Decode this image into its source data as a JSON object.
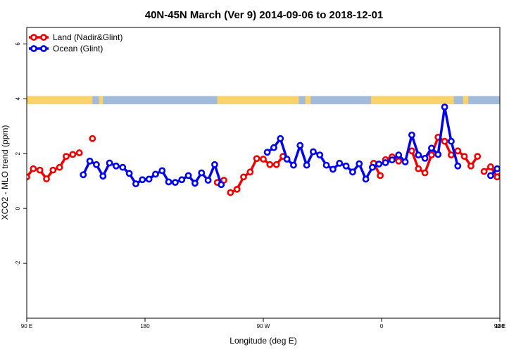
{
  "chart_data": {
    "type": "line",
    "title": "40N-45N March (Ver 9)   2014-09-06 to 2018-12-01",
    "xlabel": "Longitude (deg E)",
    "ylabel": "XCO2 - MLO trend (ppm)",
    "xlim": [
      90,
      450
    ],
    "ylim": [
      -4,
      6.6
    ],
    "x_ticks": [
      {
        "value": 90,
        "label": "90 E"
      },
      {
        "value": 180,
        "label": "180"
      },
      {
        "value": 270,
        "label": "90 W"
      },
      {
        "value": 360,
        "label": "0"
      },
      {
        "value": 450,
        "label": "90 E"
      },
      {
        "value": 540,
        "label": "180"
      }
    ],
    "y_ticks": [
      {
        "value": -2,
        "label": "-2"
      },
      {
        "value": 0,
        "label": "0"
      },
      {
        "value": 2,
        "label": "2"
      },
      {
        "value": 4,
        "label": "4"
      },
      {
        "value": 6,
        "label": "6"
      }
    ],
    "legend_position": "top-left",
    "land_band": {
      "y": [
        3.8,
        4.1
      ],
      "colors": {
        "land": "#fbd36b",
        "ocean": "#a3bbdb"
      },
      "land_segments": [
        [
          90,
          140
        ],
        [
          145,
          148
        ],
        [
          235,
          297
        ],
        [
          302,
          306
        ],
        [
          352,
          415
        ],
        [
          422,
          426
        ]
      ]
    },
    "series": [
      {
        "name": "Land (Nadir&Glint)",
        "color": "#ee0000",
        "points": [
          [
            [
              90,
              1.15
            ],
            [
              95,
              1.45
            ],
            [
              100,
              1.4
            ],
            [
              105,
              1.08
            ],
            [
              110,
              1.4
            ],
            [
              115,
              1.5
            ],
            [
              120,
              1.9
            ],
            [
              125,
              1.97
            ],
            [
              130,
              2.03
            ]
          ],
          [
            [
              140,
              2.55
            ]
          ],
          [
            [
              235,
              0.95
            ],
            [
              240,
              1.03
            ]
          ],
          [
            [
              245,
              0.58
            ],
            [
              250,
              0.7
            ],
            [
              255,
              1.15
            ],
            [
              260,
              1.33
            ],
            [
              265,
              1.82
            ],
            [
              270,
              1.8
            ],
            [
              275,
              1.6
            ],
            [
              280,
              1.6
            ],
            [
              285,
              1.9
            ]
          ],
          [
            [
              354,
              1.65
            ],
            [
              359,
              1.2
            ]
          ],
          [
            [
              363,
              1.78
            ],
            [
              368,
              1.88
            ],
            [
              373,
              1.73
            ]
          ],
          [
            [
              383,
              2.1
            ],
            [
              388,
              1.45
            ],
            [
              393,
              1.3
            ],
            [
              398,
              1.95
            ],
            [
              403,
              2.6
            ],
            [
              408,
              2.45
            ],
            [
              413,
              1.95
            ],
            [
              418,
              2.1
            ],
            [
              423,
              1.9
            ],
            [
              428,
              1.55
            ],
            [
              433,
              1.9
            ]
          ],
          [
            [
              438,
              1.35
            ],
            [
              443,
              1.52
            ],
            [
              448,
              1.15
            ],
            [
              453,
              1.45
            ],
            [
              458,
              1.38
            ],
            [
              463,
              1.07
            ],
            [
              468,
              1.4
            ],
            [
              473,
              1.5
            ],
            [
              478,
              1.92
            ],
            [
              483,
              1.97
            ],
            [
              488,
              2.04
            ]
          ],
          [
            [
              498,
              2.55
            ]
          ]
        ]
      },
      {
        "name": "Ocean (Glint)",
        "color": "#0000ee",
        "points": [
          [
            [
              133,
              1.23
            ],
            [
              138,
              1.73
            ],
            [
              143,
              1.6
            ],
            [
              148,
              1.18
            ],
            [
              153,
              1.66
            ],
            [
              158,
              1.55
            ],
            [
              163,
              1.5
            ],
            [
              168,
              1.28
            ],
            [
              173,
              0.9
            ],
            [
              178,
              1.05
            ],
            [
              183,
              1.07
            ],
            [
              188,
              1.25
            ],
            [
              193,
              1.38
            ],
            [
              198,
              0.97
            ],
            [
              203,
              0.95
            ],
            [
              208,
              1.05
            ],
            [
              213,
              1.2
            ],
            [
              218,
              0.92
            ],
            [
              223,
              1.3
            ],
            [
              228,
              1.03
            ],
            [
              233,
              1.6
            ],
            [
              238,
              0.87
            ]
          ],
          [
            [
              273,
              2.05
            ],
            [
              278,
              2.22
            ],
            [
              283,
              2.55
            ],
            [
              288,
              1.8
            ],
            [
              293,
              1.58
            ],
            [
              298,
              2.3
            ],
            [
              303,
              1.58
            ],
            [
              308,
              2.07
            ],
            [
              313,
              1.95
            ],
            [
              318,
              1.58
            ],
            [
              323,
              1.43
            ],
            [
              328,
              1.65
            ],
            [
              333,
              1.55
            ],
            [
              338,
              1.33
            ],
            [
              343,
              1.63
            ],
            [
              348,
              1.07
            ],
            [
              353,
              1.5
            ],
            [
              358,
              1.62
            ],
            [
              363,
              1.67
            ],
            [
              368,
              1.77
            ],
            [
              373,
              1.95
            ],
            [
              378,
              1.7
            ],
            [
              383,
              2.68
            ],
            [
              388,
              1.95
            ],
            [
              393,
              1.83
            ],
            [
              398,
              2.2
            ],
            [
              403,
              1.97
            ],
            [
              408,
              3.7
            ],
            [
              413,
              2.45
            ],
            [
              418,
              1.55
            ]
          ],
          [
            [
              443,
              1.2
            ],
            [
              448,
              1.45
            ]
          ],
          [
            [
              485,
              1.25
            ],
            [
              490,
              1.73
            ],
            [
              495,
              1.6
            ],
            [
              500,
              1.18
            ],
            [
              505,
              1.66
            ],
            [
              510,
              1.55
            ],
            [
              515,
              1.5
            ],
            [
              520,
              1.28
            ],
            [
              525,
              0.9
            ],
            [
              530,
              1.05
            ]
          ]
        ]
      }
    ]
  }
}
